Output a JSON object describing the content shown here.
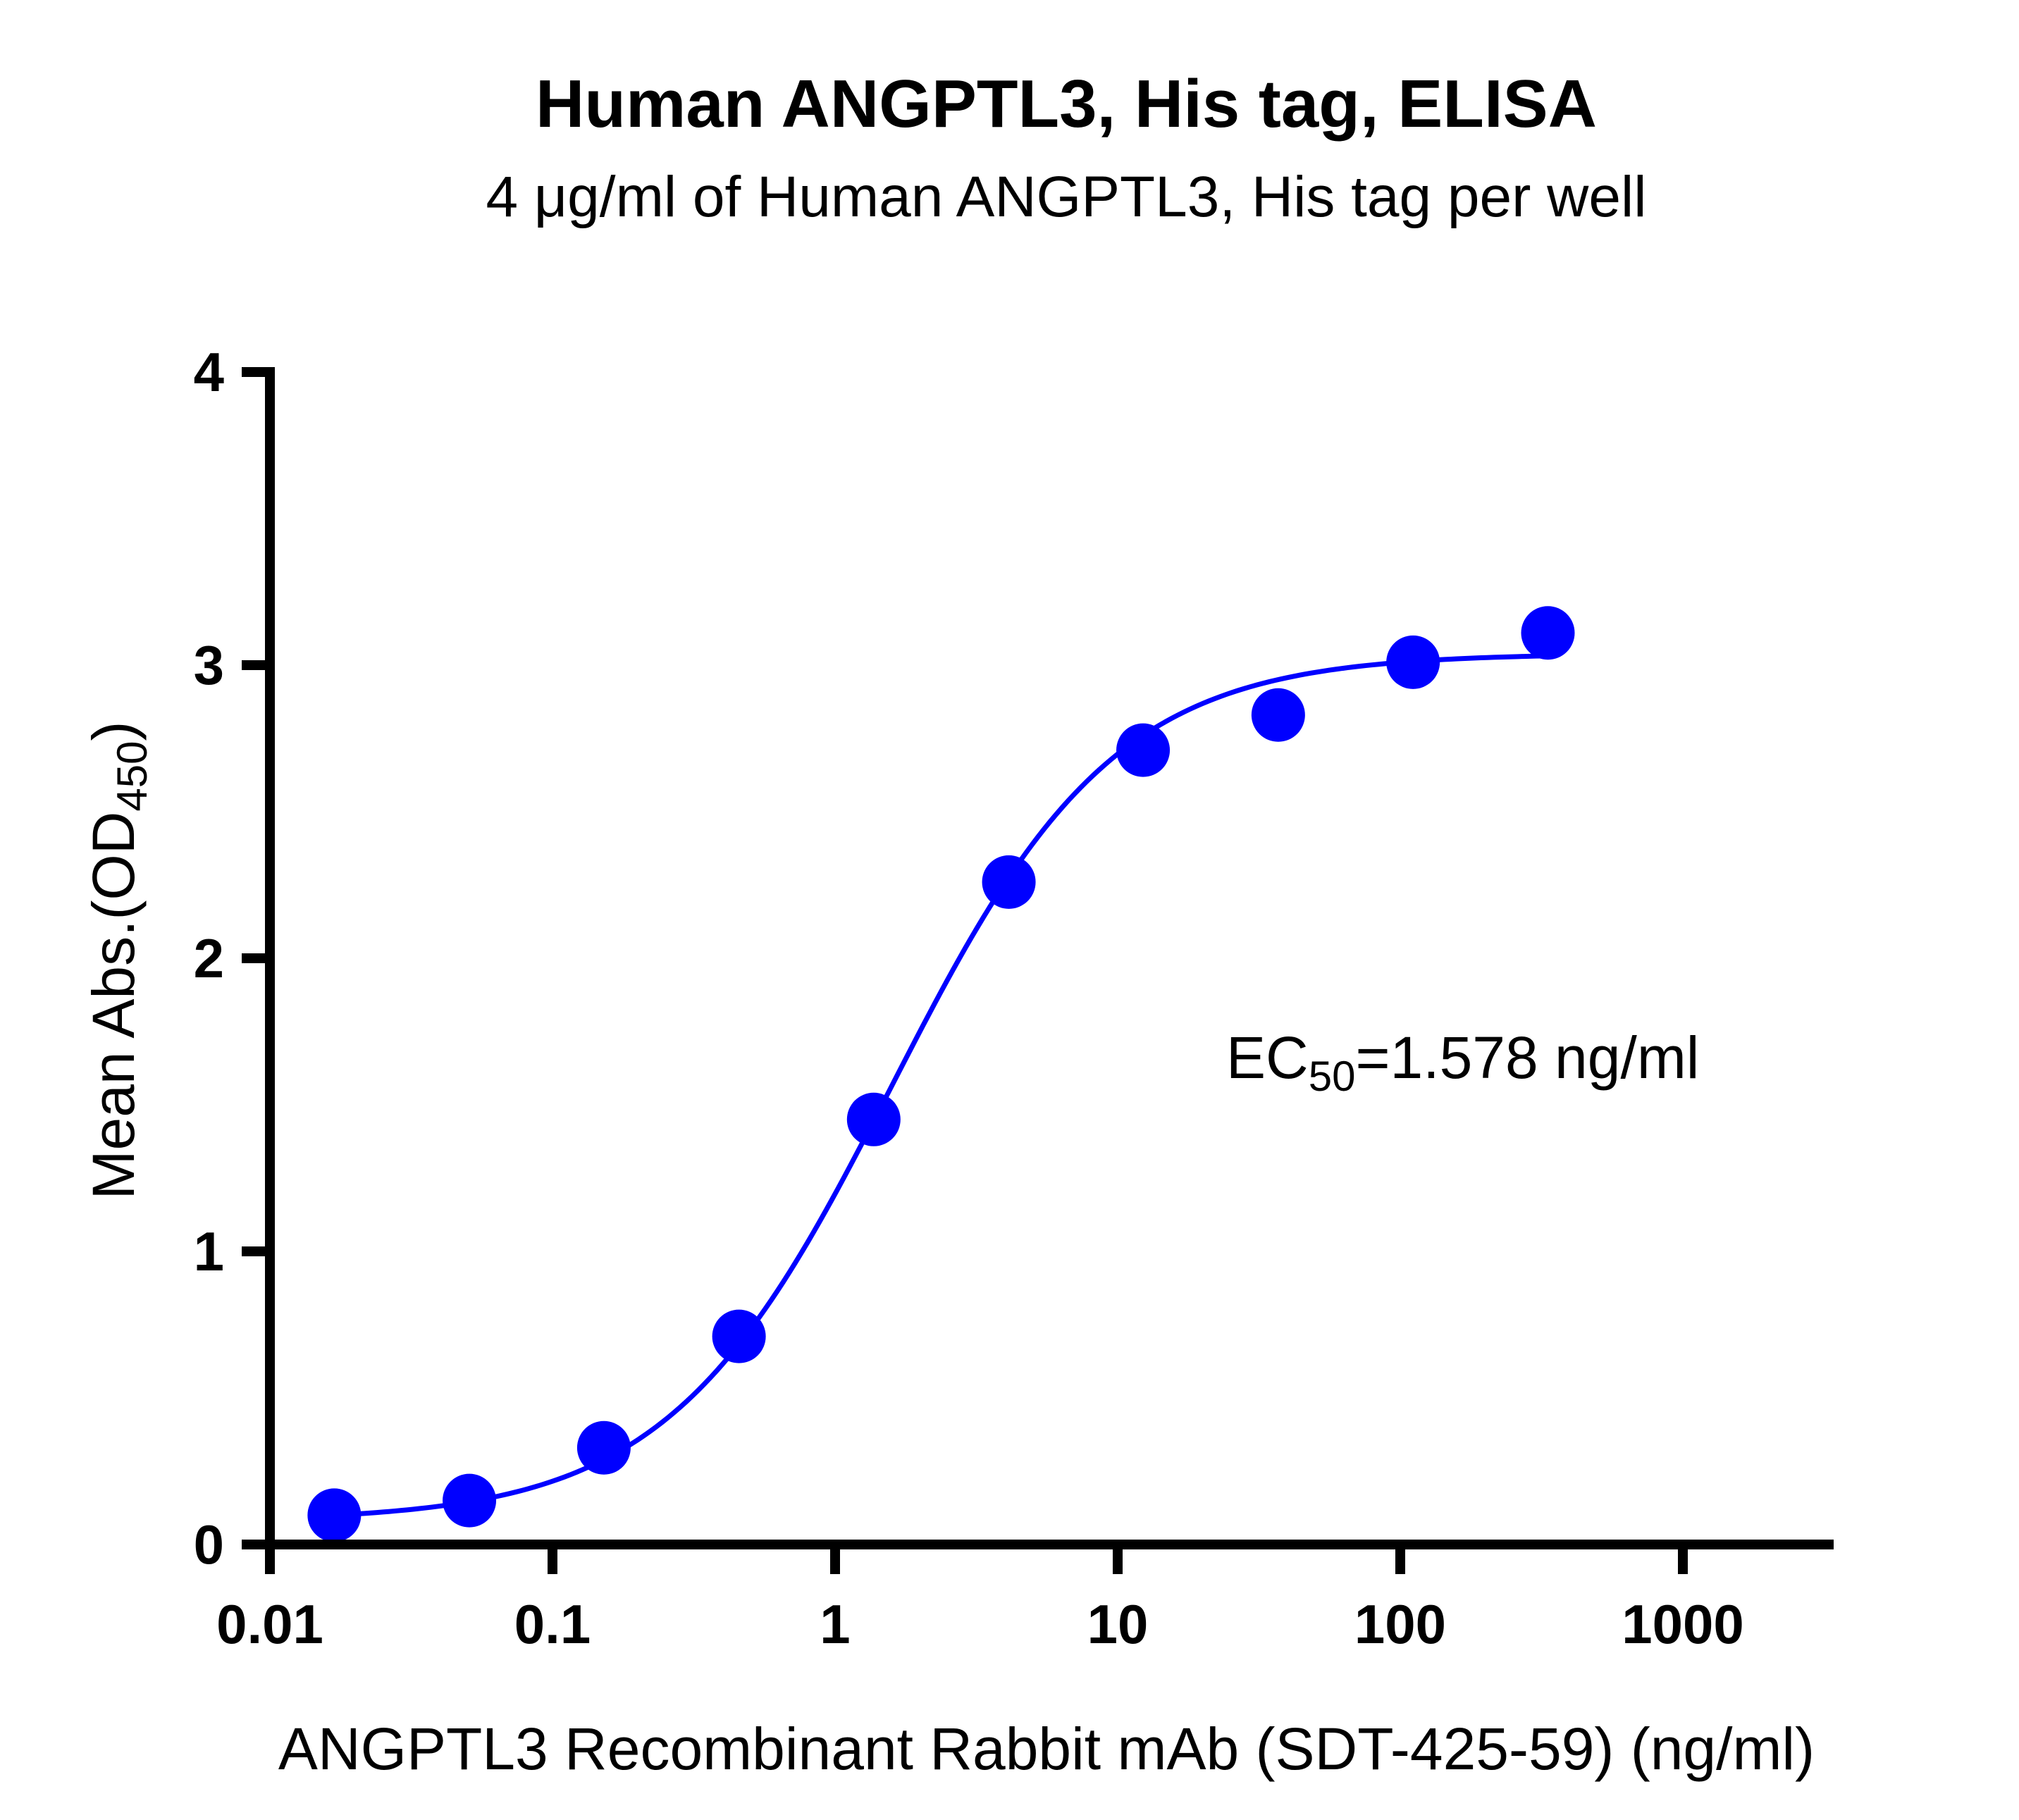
{
  "chart_data": {
    "type": "scatter",
    "title": "Human ANGPTL3, His tag, ELISA",
    "subtitle": "4 μg/ml of Human ANGPTL3, His tag per well",
    "xlabel": "ANGPTL3 Recombinant Rabbit mAb (SDT-425-59) (ng/ml)",
    "ylabel_main": "Mean Abs.(OD",
    "ylabel_sub": "450",
    "ylabel_close": ")",
    "xscale": "log",
    "xlim": [
      0.01,
      3000
    ],
    "ylim": [
      0,
      4
    ],
    "xticks": [
      0.01,
      0.1,
      1,
      10,
      100,
      1000
    ],
    "xtick_labels": [
      "0.01",
      "0.1",
      "1",
      "10",
      "100",
      "1000"
    ],
    "yticks": [
      0,
      1,
      2,
      3,
      4
    ],
    "ytick_labels": [
      "0",
      "1",
      "2",
      "3",
      "4"
    ],
    "grid": false,
    "series": [
      {
        "color": "#0000ff",
        "x": [
          0.0169,
          0.0508,
          0.152,
          0.457,
          1.37,
          4.12,
          12.3,
          37.0,
          111,
          333
        ],
        "y": [
          0.1,
          0.15,
          0.33,
          0.71,
          1.45,
          2.26,
          2.71,
          2.83,
          3.01,
          3.11
        ]
      }
    ],
    "fit": {
      "model": "4PL",
      "bottom": 0.08,
      "top": 3.04,
      "ec50": 1.578,
      "hill": 1.1,
      "color": "#0000ff"
    },
    "annotation": {
      "prefix": "EC",
      "sub": "50",
      "suffix": "=1.578 ng/ml"
    }
  }
}
